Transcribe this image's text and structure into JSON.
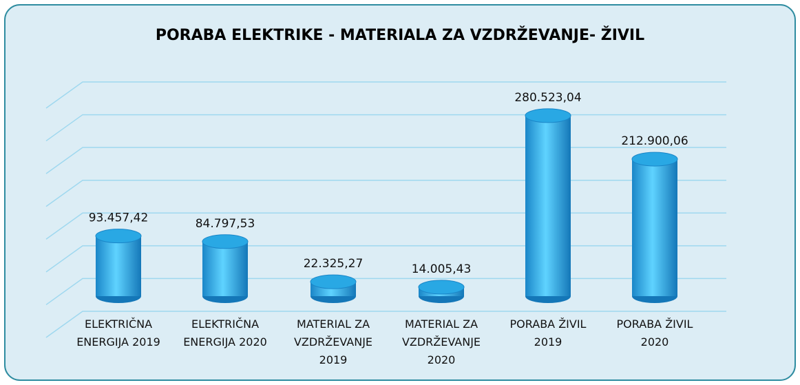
{
  "chart_data": {
    "type": "bar3d",
    "title": "PORABA ELEKTRIKE - MATERIALA ZA VZDRŽEVANJE- ŽIVIL",
    "categories": [
      "ELEKTRIČNA ENERGIJA 2019",
      "ELEKTRIČNA ENERGIJA 2020",
      "MATERIAL ZA VZDRŽEVANJE 2019",
      "MATERIAL ZA VZDRŽEVANJE 2020",
      "PORABA ŽIVIL 2019",
      "PORABA ŽIVIL 2020"
    ],
    "values": [
      93457.42,
      84797.53,
      22325.27,
      14005.43,
      280523.04,
      212900.06
    ],
    "value_labels": [
      "93.457,42",
      "84.797,53",
      "22.325,27",
      "14.005,43",
      "280.523,04",
      "212.900,06"
    ],
    "color": "#29a8e4",
    "ylim": [
      0,
      350000
    ],
    "yticks": [
      0,
      50000,
      100000,
      150000,
      200000,
      250000,
      300000,
      350000
    ],
    "grid": true
  }
}
